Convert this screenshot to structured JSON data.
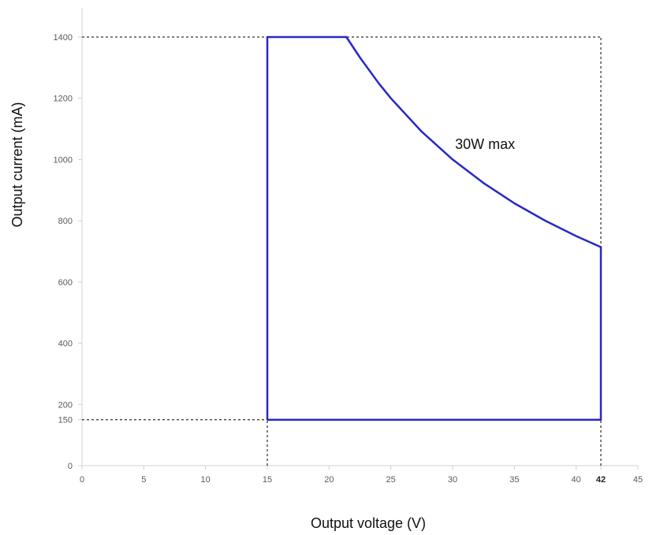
{
  "chart_data": {
    "type": "line",
    "title": "",
    "xlabel": "Output voltage (V)",
    "ylabel": "Output current (mA)",
    "xlim": [
      0,
      45
    ],
    "ylim": [
      0,
      1500
    ],
    "x_ticks": [
      0,
      5,
      10,
      15,
      20,
      25,
      30,
      35,
      40,
      42,
      45
    ],
    "y_ticks": [
      0,
      150,
      200,
      400,
      600,
      800,
      1000,
      1200,
      1400
    ],
    "grid": false,
    "legend": "none",
    "line_color": "#2828c8",
    "guide_color": "#000000",
    "series": [
      {
        "values": [
          {
            "x": 15,
            "y": 150
          },
          {
            "x": 15,
            "y": 1400
          },
          {
            "x": 21.4,
            "y": 1400
          },
          {
            "x": 22.5,
            "y": 1333
          },
          {
            "x": 24,
            "y": 1250
          },
          {
            "x": 25,
            "y": 1200
          },
          {
            "x": 27.5,
            "y": 1091
          },
          {
            "x": 30,
            "y": 1000
          },
          {
            "x": 32.5,
            "y": 923
          },
          {
            "x": 35,
            "y": 857
          },
          {
            "x": 37.5,
            "y": 800
          },
          {
            "x": 40,
            "y": 750
          },
          {
            "x": 42,
            "y": 714
          },
          {
            "x": 42,
            "y": 150
          },
          {
            "x": 15,
            "y": 150
          }
        ]
      }
    ],
    "guides": [
      {
        "from": {
          "x": 0,
          "y": 1400
        },
        "to": {
          "x": 42,
          "y": 1400
        }
      },
      {
        "from": {
          "x": 0,
          "y": 150
        },
        "to": {
          "x": 15,
          "y": 150
        }
      },
      {
        "from": {
          "x": 15,
          "y": 0
        },
        "to": {
          "x": 15,
          "y": 150
        }
      },
      {
        "from": {
          "x": 42,
          "y": 0
        },
        "to": {
          "x": 42,
          "y": 1400
        }
      }
    ],
    "annotations": [
      {
        "text": "30W max",
        "x": 30.2,
        "y": 1050
      }
    ]
  }
}
